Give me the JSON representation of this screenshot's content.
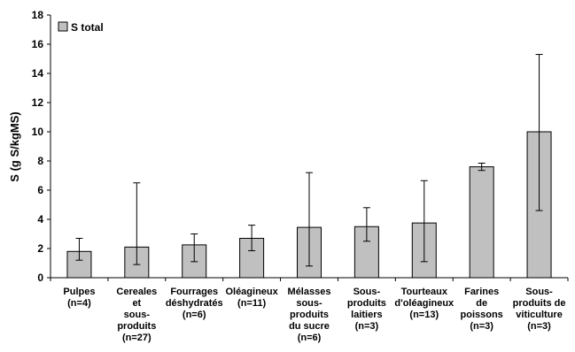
{
  "chart_data": {
    "type": "bar",
    "ylabel": "S  (g S/kgMS)",
    "ylim": [
      0,
      18
    ],
    "yticks": [
      0,
      2,
      4,
      6,
      8,
      10,
      12,
      14,
      16,
      18
    ],
    "grid": false,
    "legend_position": "top-left",
    "bar_color": "#c0c0c0",
    "categories": [
      [
        "Pulpes",
        "(n=4)"
      ],
      [
        "Cereales",
        "et",
        "sous-",
        "produits",
        "(n=27)"
      ],
      [
        "Fourrages",
        "déshydratés",
        "(n=6)"
      ],
      [
        "Oléagineux",
        "(n=11)"
      ],
      [
        "Mélasses",
        "sous-",
        "produits",
        "du sucre",
        "(n=6)"
      ],
      [
        "Sous-",
        "produits",
        "laitiers",
        "(n=3)"
      ],
      [
        "Tourteaux",
        "d'oléagineux",
        "(n=13)"
      ],
      [
        "Farines",
        "de",
        "poissons",
        "(n=3)"
      ],
      [
        "Sous-",
        "produits de",
        "viticulture",
        "(n=3)"
      ]
    ],
    "series": [
      {
        "name": "S total",
        "values": [
          1.8,
          2.1,
          2.25,
          2.7,
          3.45,
          3.5,
          3.75,
          7.6,
          10.0
        ],
        "error_low": [
          1.2,
          0.9,
          1.1,
          1.85,
          0.8,
          2.5,
          1.1,
          7.35,
          4.6
        ],
        "error_high": [
          2.7,
          6.5,
          3.0,
          3.6,
          7.2,
          4.8,
          6.65,
          7.85,
          15.3
        ]
      }
    ]
  }
}
